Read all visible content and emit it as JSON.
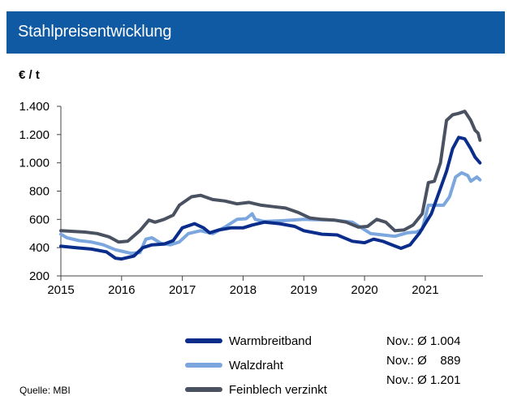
{
  "header": {
    "title": "Stahlpreisentwicklung"
  },
  "chart_data": {
    "type": "line",
    "ylabel": "€ / t",
    "ylim": [
      200,
      1400
    ],
    "xlim": [
      2015,
      2021.95
    ],
    "yticks": [
      {
        "value": 200,
        "label": "200"
      },
      {
        "value": 400,
        "label": "400"
      },
      {
        "value": 600,
        "label": "600"
      },
      {
        "value": 800,
        "label": "800"
      },
      {
        "value": 1000,
        "label": "1.000"
      },
      {
        "value": 1200,
        "label": "1.200"
      },
      {
        "value": 1400,
        "label": "1.400"
      }
    ],
    "xticks": [
      {
        "value": 2015,
        "label": "2015"
      },
      {
        "value": 2016,
        "label": "2016"
      },
      {
        "value": 2017,
        "label": "2017"
      },
      {
        "value": 2018,
        "label": "2018"
      },
      {
        "value": 2019,
        "label": "2019"
      },
      {
        "value": 2020,
        "label": "2020"
      },
      {
        "value": 2021,
        "label": "2021"
      }
    ],
    "grid": false,
    "legend": "bottom",
    "series": [
      {
        "name": "Warmbreitband",
        "color": "#0a2d8c",
        "points": [
          [
            2015.0,
            410
          ],
          [
            2015.25,
            400
          ],
          [
            2015.5,
            390
          ],
          [
            2015.75,
            370
          ],
          [
            2015.9,
            325
          ],
          [
            2016.0,
            320
          ],
          [
            2016.2,
            340
          ],
          [
            2016.35,
            400
          ],
          [
            2016.5,
            420
          ],
          [
            2016.7,
            425
          ],
          [
            2016.85,
            450
          ],
          [
            2017.0,
            540
          ],
          [
            2017.2,
            570
          ],
          [
            2017.35,
            540
          ],
          [
            2017.45,
            505
          ],
          [
            2017.6,
            525
          ],
          [
            2017.8,
            540
          ],
          [
            2018.0,
            540
          ],
          [
            2018.15,
            560
          ],
          [
            2018.35,
            580
          ],
          [
            2018.6,
            570
          ],
          [
            2018.85,
            550
          ],
          [
            2019.0,
            520
          ],
          [
            2019.3,
            495
          ],
          [
            2019.55,
            490
          ],
          [
            2019.8,
            445
          ],
          [
            2020.0,
            435
          ],
          [
            2020.15,
            460
          ],
          [
            2020.3,
            445
          ],
          [
            2020.45,
            420
          ],
          [
            2020.6,
            395
          ],
          [
            2020.75,
            420
          ],
          [
            2020.9,
            500
          ],
          [
            2021.0,
            570
          ],
          [
            2021.1,
            640
          ],
          [
            2021.2,
            760
          ],
          [
            2021.35,
            940
          ],
          [
            2021.45,
            1100
          ],
          [
            2021.55,
            1180
          ],
          [
            2021.65,
            1170
          ],
          [
            2021.75,
            1100
          ],
          [
            2021.82,
            1040
          ],
          [
            2021.9,
            1000
          ]
        ]
      },
      {
        "name": "Walzdraht",
        "color": "#7ba6de",
        "points": [
          [
            2015.0,
            495
          ],
          [
            2015.1,
            470
          ],
          [
            2015.3,
            450
          ],
          [
            2015.5,
            440
          ],
          [
            2015.7,
            420
          ],
          [
            2015.9,
            385
          ],
          [
            2016.0,
            375
          ],
          [
            2016.15,
            360
          ],
          [
            2016.3,
            365
          ],
          [
            2016.4,
            460
          ],
          [
            2016.5,
            470
          ],
          [
            2016.65,
            430
          ],
          [
            2016.8,
            420
          ],
          [
            2016.95,
            440
          ],
          [
            2017.1,
            500
          ],
          [
            2017.3,
            520
          ],
          [
            2017.5,
            500
          ],
          [
            2017.7,
            545
          ],
          [
            2017.9,
            600
          ],
          [
            2018.05,
            605
          ],
          [
            2018.15,
            640
          ],
          [
            2018.2,
            600
          ],
          [
            2018.35,
            585
          ],
          [
            2018.6,
            590
          ],
          [
            2018.8,
            595
          ],
          [
            2019.0,
            600
          ],
          [
            2019.5,
            595
          ],
          [
            2019.8,
            580
          ],
          [
            2019.95,
            540
          ],
          [
            2020.1,
            500
          ],
          [
            2020.3,
            490
          ],
          [
            2020.5,
            480
          ],
          [
            2020.7,
            505
          ],
          [
            2020.85,
            510
          ],
          [
            2020.95,
            530
          ],
          [
            2021.05,
            700
          ],
          [
            2021.15,
            700
          ],
          [
            2021.3,
            700
          ],
          [
            2021.4,
            760
          ],
          [
            2021.5,
            900
          ],
          [
            2021.6,
            930
          ],
          [
            2021.7,
            910
          ],
          [
            2021.75,
            870
          ],
          [
            2021.85,
            900
          ],
          [
            2021.9,
            880
          ]
        ]
      },
      {
        "name": "Feinblech verzinkt",
        "color": "#4a5262",
        "points": [
          [
            2015.0,
            520
          ],
          [
            2015.2,
            515
          ],
          [
            2015.4,
            510
          ],
          [
            2015.6,
            500
          ],
          [
            2015.8,
            475
          ],
          [
            2015.95,
            440
          ],
          [
            2016.1,
            445
          ],
          [
            2016.3,
            520
          ],
          [
            2016.45,
            595
          ],
          [
            2016.55,
            580
          ],
          [
            2016.7,
            600
          ],
          [
            2016.85,
            630
          ],
          [
            2016.95,
            700
          ],
          [
            2017.15,
            760
          ],
          [
            2017.3,
            770
          ],
          [
            2017.5,
            740
          ],
          [
            2017.7,
            730
          ],
          [
            2017.9,
            710
          ],
          [
            2018.1,
            720
          ],
          [
            2018.3,
            700
          ],
          [
            2018.5,
            690
          ],
          [
            2018.7,
            680
          ],
          [
            2018.9,
            650
          ],
          [
            2019.1,
            610
          ],
          [
            2019.3,
            600
          ],
          [
            2019.5,
            595
          ],
          [
            2019.7,
            580
          ],
          [
            2019.9,
            545
          ],
          [
            2020.05,
            550
          ],
          [
            2020.2,
            600
          ],
          [
            2020.35,
            580
          ],
          [
            2020.5,
            520
          ],
          [
            2020.65,
            525
          ],
          [
            2020.8,
            560
          ],
          [
            2020.95,
            640
          ],
          [
            2021.05,
            860
          ],
          [
            2021.15,
            870
          ],
          [
            2021.25,
            1000
          ],
          [
            2021.35,
            1300
          ],
          [
            2021.45,
            1340
          ],
          [
            2021.55,
            1350
          ],
          [
            2021.65,
            1365
          ],
          [
            2021.75,
            1300
          ],
          [
            2021.82,
            1230
          ],
          [
            2021.87,
            1210
          ],
          [
            2021.9,
            1160
          ]
        ]
      }
    ]
  },
  "legend_stats": [
    {
      "label": "Nov.:",
      "value": "Ø 1.004"
    },
    {
      "label": "Nov.:",
      "value": "Ø    889"
    },
    {
      "label": "Nov.:",
      "value": "Ø 1.201"
    }
  ],
  "source": "Quelle: MBI"
}
